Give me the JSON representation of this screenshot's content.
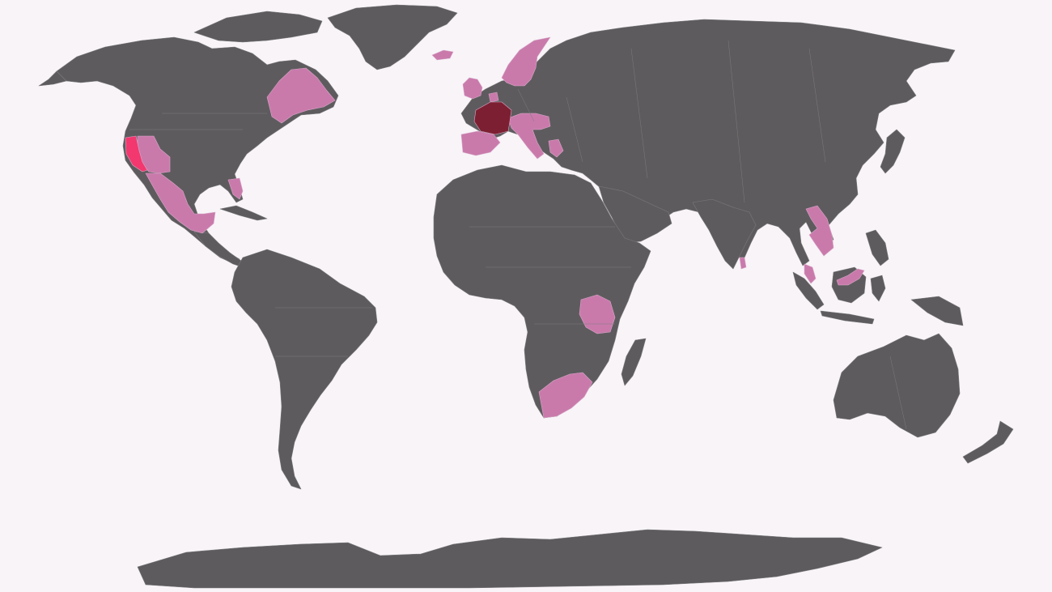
{
  "map": {
    "colors": {
      "background": "#f8f4f8",
      "land": "#5e5b5e",
      "visited": "#c97aab",
      "state_highlight": "#f2386e",
      "home": "#7d1f32"
    },
    "highlighted_countries": [
      {
        "id": "canada-quebec",
        "level": "visited"
      },
      {
        "id": "united-states-southwest",
        "level": "visited"
      },
      {
        "id": "united-states-california",
        "level": "state_highlight"
      },
      {
        "id": "united-states-florida",
        "level": "visited"
      },
      {
        "id": "mexico",
        "level": "visited"
      },
      {
        "id": "iceland",
        "level": "visited"
      },
      {
        "id": "norway",
        "level": "visited"
      },
      {
        "id": "sweden",
        "level": "visited"
      },
      {
        "id": "united-kingdom",
        "level": "visited"
      },
      {
        "id": "ireland",
        "level": "visited"
      },
      {
        "id": "netherlands",
        "level": "visited"
      },
      {
        "id": "france",
        "level": "home"
      },
      {
        "id": "spain",
        "level": "visited"
      },
      {
        "id": "portugal",
        "level": "visited"
      },
      {
        "id": "italy",
        "level": "visited"
      },
      {
        "id": "switzerland",
        "level": "visited"
      },
      {
        "id": "austria",
        "level": "visited"
      },
      {
        "id": "hungary",
        "level": "visited"
      },
      {
        "id": "croatia",
        "level": "visited"
      },
      {
        "id": "greece",
        "level": "visited"
      },
      {
        "id": "tanzania",
        "level": "visited"
      },
      {
        "id": "south-africa",
        "level": "visited"
      },
      {
        "id": "sri-lanka",
        "level": "visited"
      },
      {
        "id": "vietnam",
        "level": "visited"
      },
      {
        "id": "cambodia",
        "level": "visited"
      },
      {
        "id": "malaysia",
        "level": "visited"
      }
    ]
  }
}
